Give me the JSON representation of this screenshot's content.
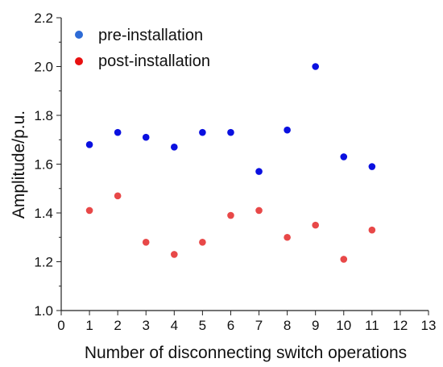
{
  "chart_data": {
    "type": "scatter",
    "title": "",
    "xlabel": "Number of disconnecting switch operations",
    "ylabel": "Amplitude/p.u.",
    "xlim": [
      0,
      13
    ],
    "ylim": [
      1.0,
      2.2
    ],
    "xticks": [
      "0",
      "1",
      "2",
      "3",
      "4",
      "5",
      "6",
      "7",
      "8",
      "9",
      "10",
      "11",
      "12",
      "13"
    ],
    "yticks": [
      "1.0",
      "1.2",
      "1.4",
      "1.6",
      "1.8",
      "2.0",
      "2.2"
    ],
    "grid": false,
    "legend_position": "top-left",
    "series": [
      {
        "name": "pre-installation",
        "color": "#0a10e0",
        "legend_color": "#2d6bd6",
        "x": [
          1,
          2,
          3,
          4,
          5,
          6,
          7,
          8,
          9,
          10,
          11
        ],
        "y": [
          1.68,
          1.73,
          1.71,
          1.67,
          1.73,
          1.73,
          1.57,
          1.74,
          2.0,
          1.63,
          1.59
        ]
      },
      {
        "name": "post-installation",
        "color": "#e84848",
        "legend_color": "#e81010",
        "x": [
          1,
          2,
          3,
          4,
          5,
          6,
          7,
          8,
          9,
          10,
          11
        ],
        "y": [
          1.41,
          1.47,
          1.28,
          1.23,
          1.28,
          1.39,
          1.41,
          1.3,
          1.35,
          1.21,
          1.33
        ]
      }
    ]
  }
}
